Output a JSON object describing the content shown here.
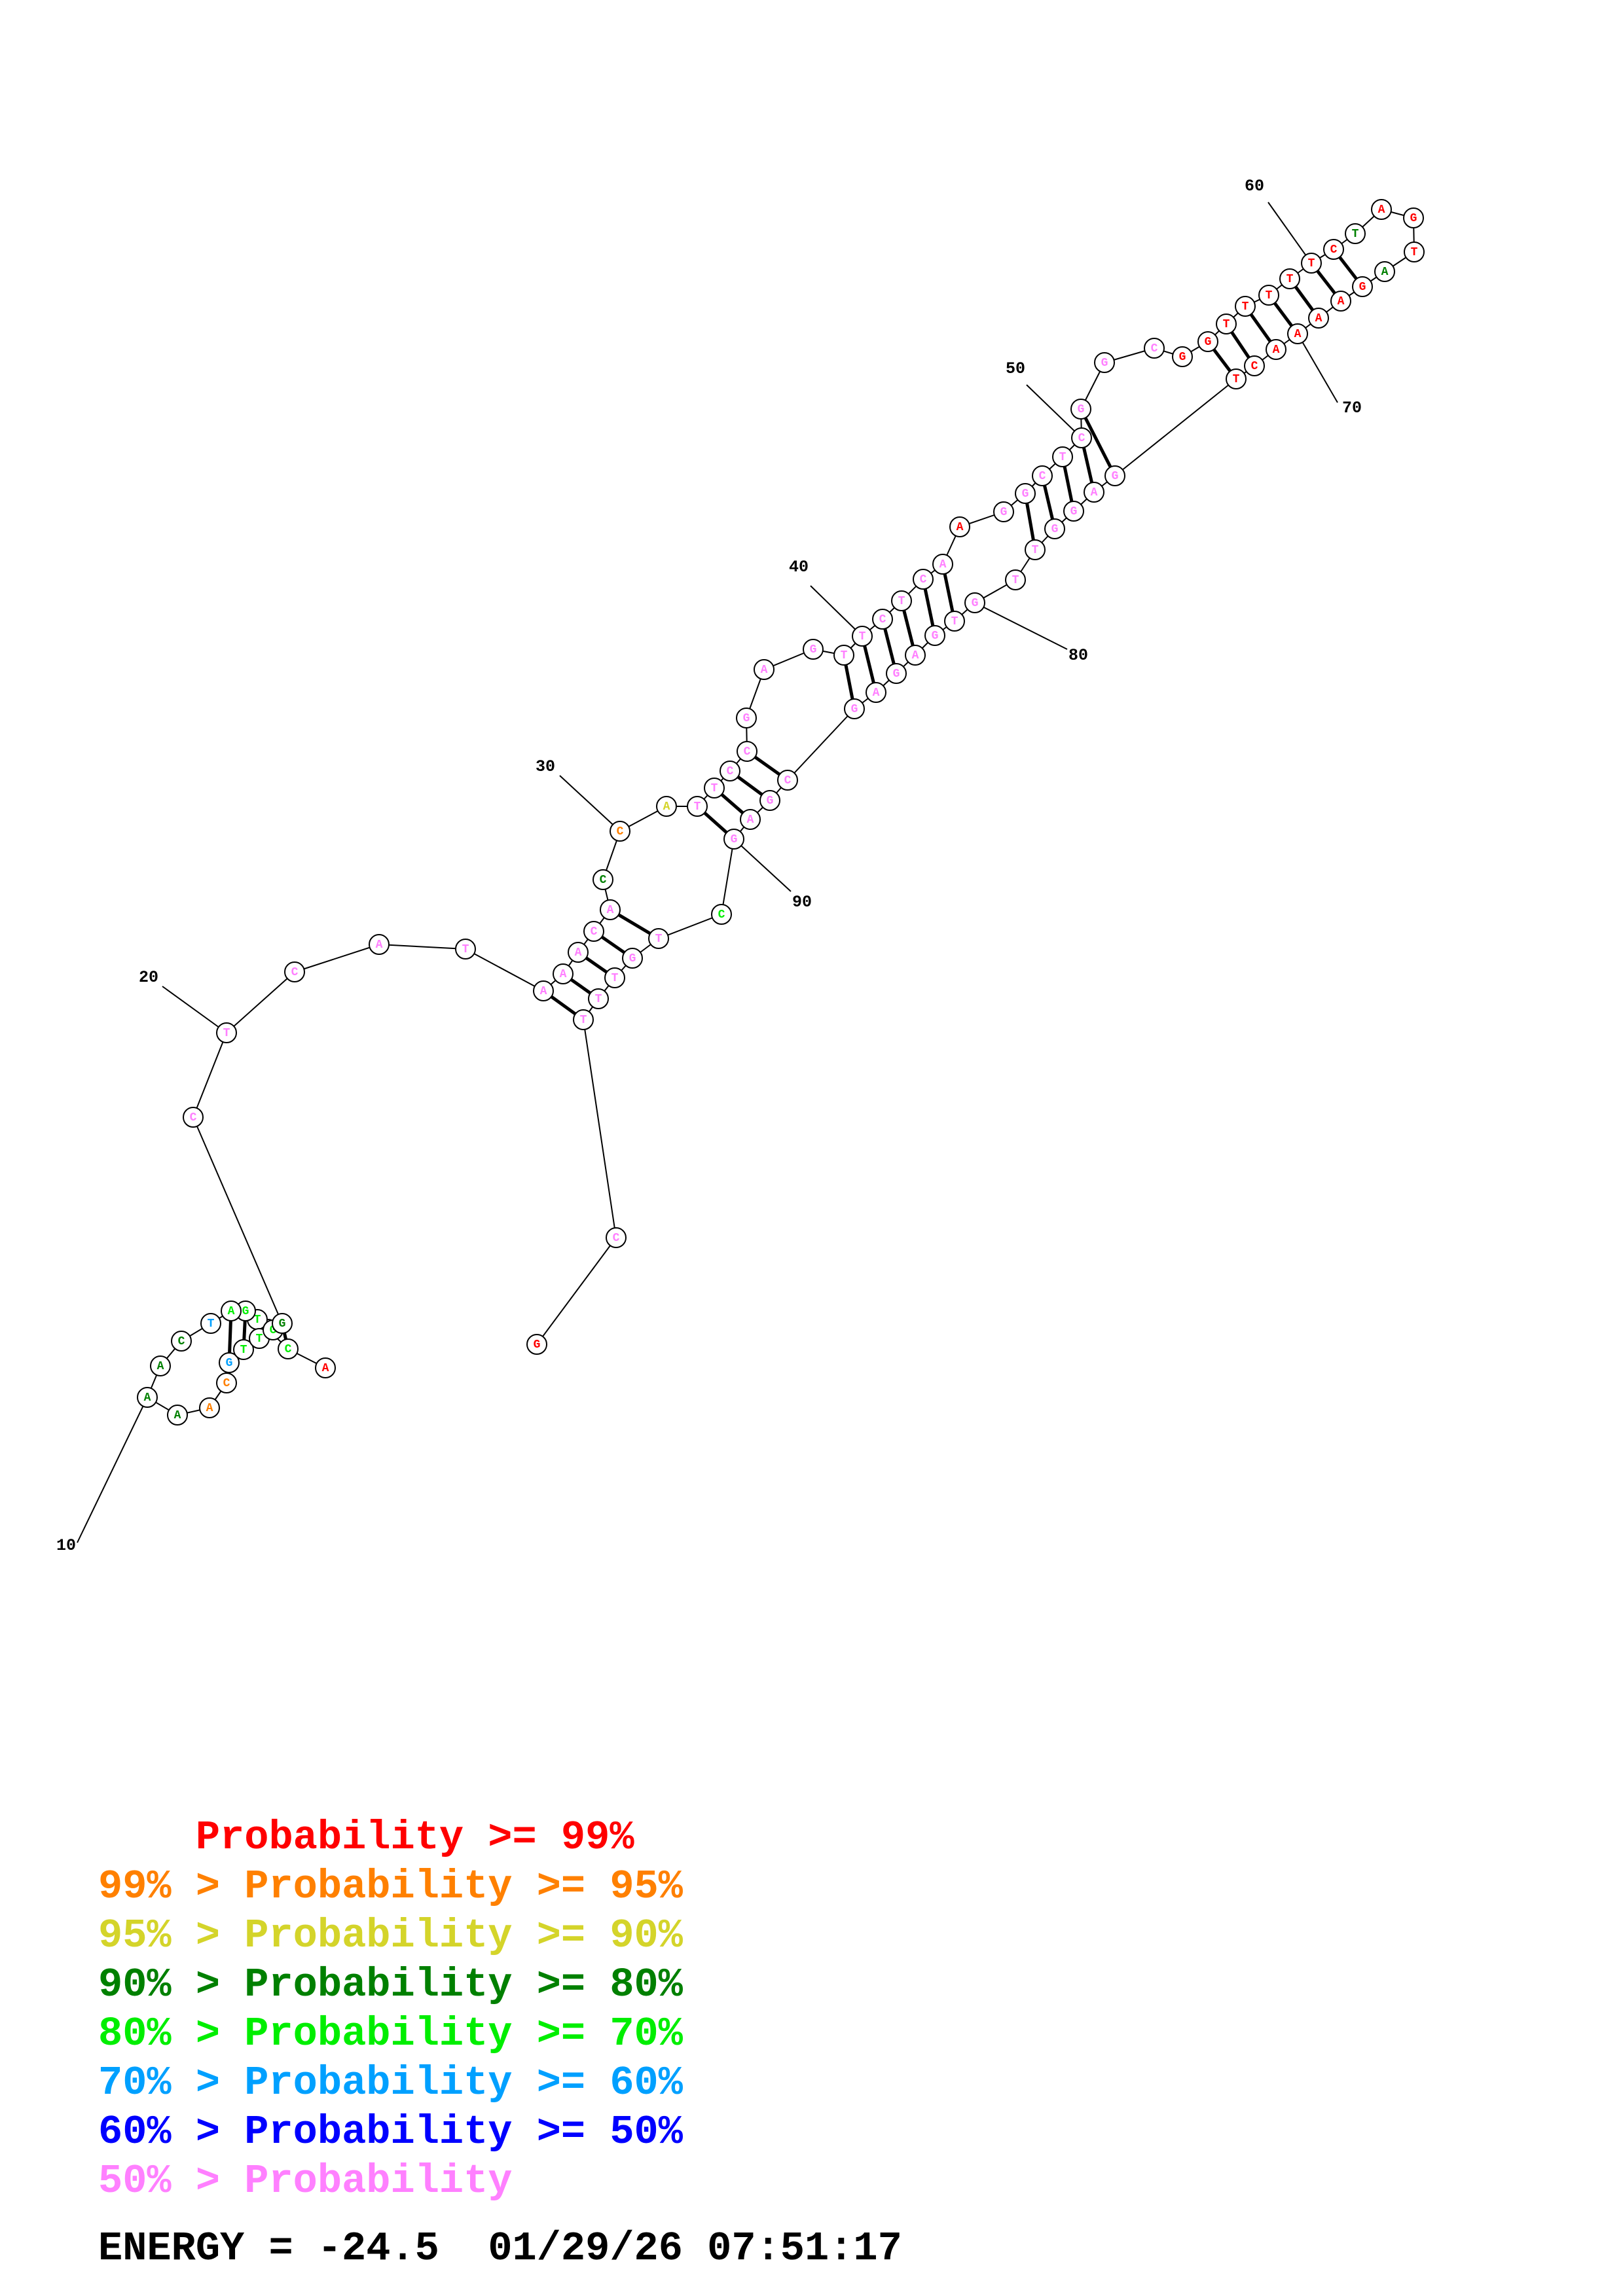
{
  "colors": {
    "c99": "#ff0000",
    "c95": "#ff8000",
    "c90": "#d4d42a",
    "c80": "#008000",
    "c70": "#00ee00",
    "c60": "#00a0ff",
    "c50": "#0000ff",
    "clow": "#ff80ff"
  },
  "bases": [
    {
      "n": 1,
      "b": "A",
      "c": "c99"
    },
    {
      "n": 2,
      "b": "C",
      "c": "c70"
    },
    {
      "n": 3,
      "b": "G",
      "c": "c70"
    },
    {
      "n": 4,
      "b": "T",
      "c": "c70"
    },
    {
      "n": 5,
      "b": "G",
      "c": "c70"
    },
    {
      "n": 6,
      "b": "A",
      "c": "c70"
    },
    {
      "n": 7,
      "b": "T",
      "c": "c60"
    },
    {
      "n": 8,
      "b": "C",
      "c": "c80"
    },
    {
      "n": 9,
      "b": "A",
      "c": "c80"
    },
    {
      "n": 10,
      "b": "A",
      "c": "c80"
    },
    {
      "n": 11,
      "b": "A",
      "c": "c80"
    },
    {
      "n": 12,
      "b": "A",
      "c": "c95"
    },
    {
      "n": 13,
      "b": "C",
      "c": "c95"
    },
    {
      "n": 14,
      "b": "G",
      "c": "c60"
    },
    {
      "n": 15,
      "b": "T",
      "c": "c70"
    },
    {
      "n": 16,
      "b": "T",
      "c": "c70"
    },
    {
      "n": 17,
      "b": "G",
      "c": "c70"
    },
    {
      "n": 18,
      "b": "G",
      "c": "c80"
    },
    {
      "n": 19,
      "b": "C",
      "c": "clow"
    },
    {
      "n": 20,
      "b": "T",
      "c": "clow"
    },
    {
      "n": 21,
      "b": "C",
      "c": "clow"
    },
    {
      "n": 22,
      "b": "A",
      "c": "clow"
    },
    {
      "n": 23,
      "b": "T",
      "c": "clow"
    },
    {
      "n": 24,
      "b": "A",
      "c": "clow"
    },
    {
      "n": 25,
      "b": "A",
      "c": "clow"
    },
    {
      "n": 26,
      "b": "A",
      "c": "clow"
    },
    {
      "n": 27,
      "b": "C",
      "c": "clow"
    },
    {
      "n": 28,
      "b": "A",
      "c": "clow"
    },
    {
      "n": 29,
      "b": "C",
      "c": "c80"
    },
    {
      "n": 30,
      "b": "C",
      "c": "c95"
    },
    {
      "n": 31,
      "b": "A",
      "c": "c90"
    },
    {
      "n": 32,
      "b": "T",
      "c": "clow"
    },
    {
      "n": 33,
      "b": "T",
      "c": "clow"
    },
    {
      "n": 34,
      "b": "C",
      "c": "clow"
    },
    {
      "n": 35,
      "b": "C",
      "c": "clow"
    },
    {
      "n": 36,
      "b": "G",
      "c": "clow"
    },
    {
      "n": 37,
      "b": "A",
      "c": "clow"
    },
    {
      "n": 38,
      "b": "G",
      "c": "clow"
    },
    {
      "n": 39,
      "b": "T",
      "c": "clow"
    },
    {
      "n": 40,
      "b": "T",
      "c": "clow"
    },
    {
      "n": 41,
      "b": "C",
      "c": "clow"
    },
    {
      "n": 42,
      "b": "T",
      "c": "clow"
    },
    {
      "n": 43,
      "b": "C",
      "c": "clow"
    },
    {
      "n": 44,
      "b": "A",
      "c": "clow"
    },
    {
      "n": 45,
      "b": "A",
      "c": "c99"
    },
    {
      "n": 46,
      "b": "G",
      "c": "clow"
    },
    {
      "n": 47,
      "b": "G",
      "c": "clow"
    },
    {
      "n": 48,
      "b": "C",
      "c": "clow"
    },
    {
      "n": 49,
      "b": "T",
      "c": "clow"
    },
    {
      "n": 50,
      "b": "C",
      "c": "clow"
    },
    {
      "n": 51,
      "b": "G",
      "c": "clow"
    },
    {
      "n": 52,
      "b": "G",
      "c": "clow"
    },
    {
      "n": 53,
      "b": "C",
      "c": "clow"
    },
    {
      "n": 54,
      "b": "G",
      "c": "c99"
    },
    {
      "n": 55,
      "b": "G",
      "c": "c99"
    },
    {
      "n": 56,
      "b": "T",
      "c": "c99"
    },
    {
      "n": 57,
      "b": "T",
      "c": "c99"
    },
    {
      "n": 58,
      "b": "T",
      "c": "c99"
    },
    {
      "n": 59,
      "b": "T",
      "c": "c99"
    },
    {
      "n": 60,
      "b": "T",
      "c": "c99"
    },
    {
      "n": 61,
      "b": "C",
      "c": "c99"
    },
    {
      "n": 62,
      "b": "T",
      "c": "c80"
    },
    {
      "n": 63,
      "b": "A",
      "c": "c99"
    },
    {
      "n": 64,
      "b": "G",
      "c": "c99"
    },
    {
      "n": 65,
      "b": "T",
      "c": "c99"
    },
    {
      "n": 66,
      "b": "A",
      "c": "c80"
    },
    {
      "n": 67,
      "b": "G",
      "c": "c99"
    },
    {
      "n": 68,
      "b": "A",
      "c": "c99"
    },
    {
      "n": 69,
      "b": "A",
      "c": "c99"
    },
    {
      "n": 70,
      "b": "A",
      "c": "c99"
    },
    {
      "n": 71,
      "b": "A",
      "c": "c99"
    },
    {
      "n": 72,
      "b": "C",
      "c": "c99"
    },
    {
      "n": 73,
      "b": "T",
      "c": "c99"
    },
    {
      "n": 74,
      "b": "G",
      "c": "clow"
    },
    {
      "n": 75,
      "b": "A",
      "c": "clow"
    },
    {
      "n": 76,
      "b": "G",
      "c": "clow"
    },
    {
      "n": 77,
      "b": "G",
      "c": "clow"
    },
    {
      "n": 78,
      "b": "T",
      "c": "clow"
    },
    {
      "n": 79,
      "b": "T",
      "c": "clow"
    },
    {
      "n": 80,
      "b": "G",
      "c": "clow"
    },
    {
      "n": 81,
      "b": "T",
      "c": "clow"
    },
    {
      "n": 82,
      "b": "G",
      "c": "clow"
    },
    {
      "n": 83,
      "b": "A",
      "c": "clow"
    },
    {
      "n": 84,
      "b": "G",
      "c": "clow"
    },
    {
      "n": 85,
      "b": "A",
      "c": "clow"
    },
    {
      "n": 86,
      "b": "G",
      "c": "clow"
    },
    {
      "n": 87,
      "b": "C",
      "c": "clow"
    },
    {
      "n": 88,
      "b": "G",
      "c": "clow"
    },
    {
      "n": 89,
      "b": "A",
      "c": "clow"
    },
    {
      "n": 90,
      "b": "G",
      "c": "clow"
    },
    {
      "n": 91,
      "b": "C",
      "c": "c70"
    },
    {
      "n": 92,
      "b": "T",
      "c": "clow"
    },
    {
      "n": 93,
      "b": "G",
      "c": "clow"
    },
    {
      "n": 94,
      "b": "T",
      "c": "clow"
    },
    {
      "n": 95,
      "b": "T",
      "c": "clow"
    },
    {
      "n": 96,
      "b": "T",
      "c": "clow"
    },
    {
      "n": 97,
      "b": "C",
      "c": "clow"
    },
    {
      "n": 98,
      "b": "G",
      "c": "c99"
    }
  ],
  "pairs": [
    [
      2,
      18
    ],
    [
      3,
      17
    ],
    [
      4,
      16
    ],
    [
      5,
      15
    ],
    [
      6,
      14
    ],
    [
      24,
      96
    ],
    [
      25,
      95
    ],
    [
      26,
      94
    ],
    [
      27,
      93
    ],
    [
      28,
      92
    ],
    [
      32,
      90
    ],
    [
      33,
      89
    ],
    [
      34,
      88
    ],
    [
      35,
      87
    ],
    [
      39,
      86
    ],
    [
      40,
      85
    ],
    [
      41,
      84
    ],
    [
      42,
      83
    ],
    [
      43,
      82
    ],
    [
      44,
      81
    ],
    [
      47,
      78
    ],
    [
      48,
      77
    ],
    [
      49,
      76
    ],
    [
      50,
      75
    ],
    [
      51,
      74
    ],
    [
      55,
      73
    ],
    [
      56,
      72
    ],
    [
      57,
      71
    ],
    [
      58,
      70
    ],
    [
      59,
      69
    ],
    [
      60,
      68
    ],
    [
      61,
      67
    ]
  ],
  "index_labels": [
    {
      "n": 10,
      "text": "10"
    },
    {
      "n": 20,
      "text": "20"
    },
    {
      "n": 30,
      "text": "30"
    },
    {
      "n": 40,
      "text": "40"
    },
    {
      "n": 50,
      "text": "50"
    },
    {
      "n": 60,
      "text": "60"
    },
    {
      "n": 70,
      "text": "70"
    },
    {
      "n": 80,
      "text": "80"
    },
    {
      "n": 90,
      "text": "90"
    }
  ],
  "legend": [
    {
      "prefix": "    ",
      "label": "Probability >= 99%",
      "color": "c99"
    },
    {
      "prefix": "99% > ",
      "label": "Probability >= 95%",
      "color": "c95"
    },
    {
      "prefix": "95% > ",
      "label": "Probability >= 90%",
      "color": "c90"
    },
    {
      "prefix": "90% > ",
      "label": "Probability >= 80%",
      "color": "c80"
    },
    {
      "prefix": "80% > ",
      "label": "Probability >= 70%",
      "color": "c70"
    },
    {
      "prefix": "70% > ",
      "label": "Probability >= 60%",
      "color": "c60"
    },
    {
      "prefix": "60% > ",
      "label": "Probability >= 50%",
      "color": "c50"
    },
    {
      "prefix": "50% > ",
      "label": "Probability",
      "color": "clow"
    }
  ],
  "footer": {
    "energy": "ENERGY = -24.5",
    "timestamp": "01/29/26 07:51:17"
  }
}
